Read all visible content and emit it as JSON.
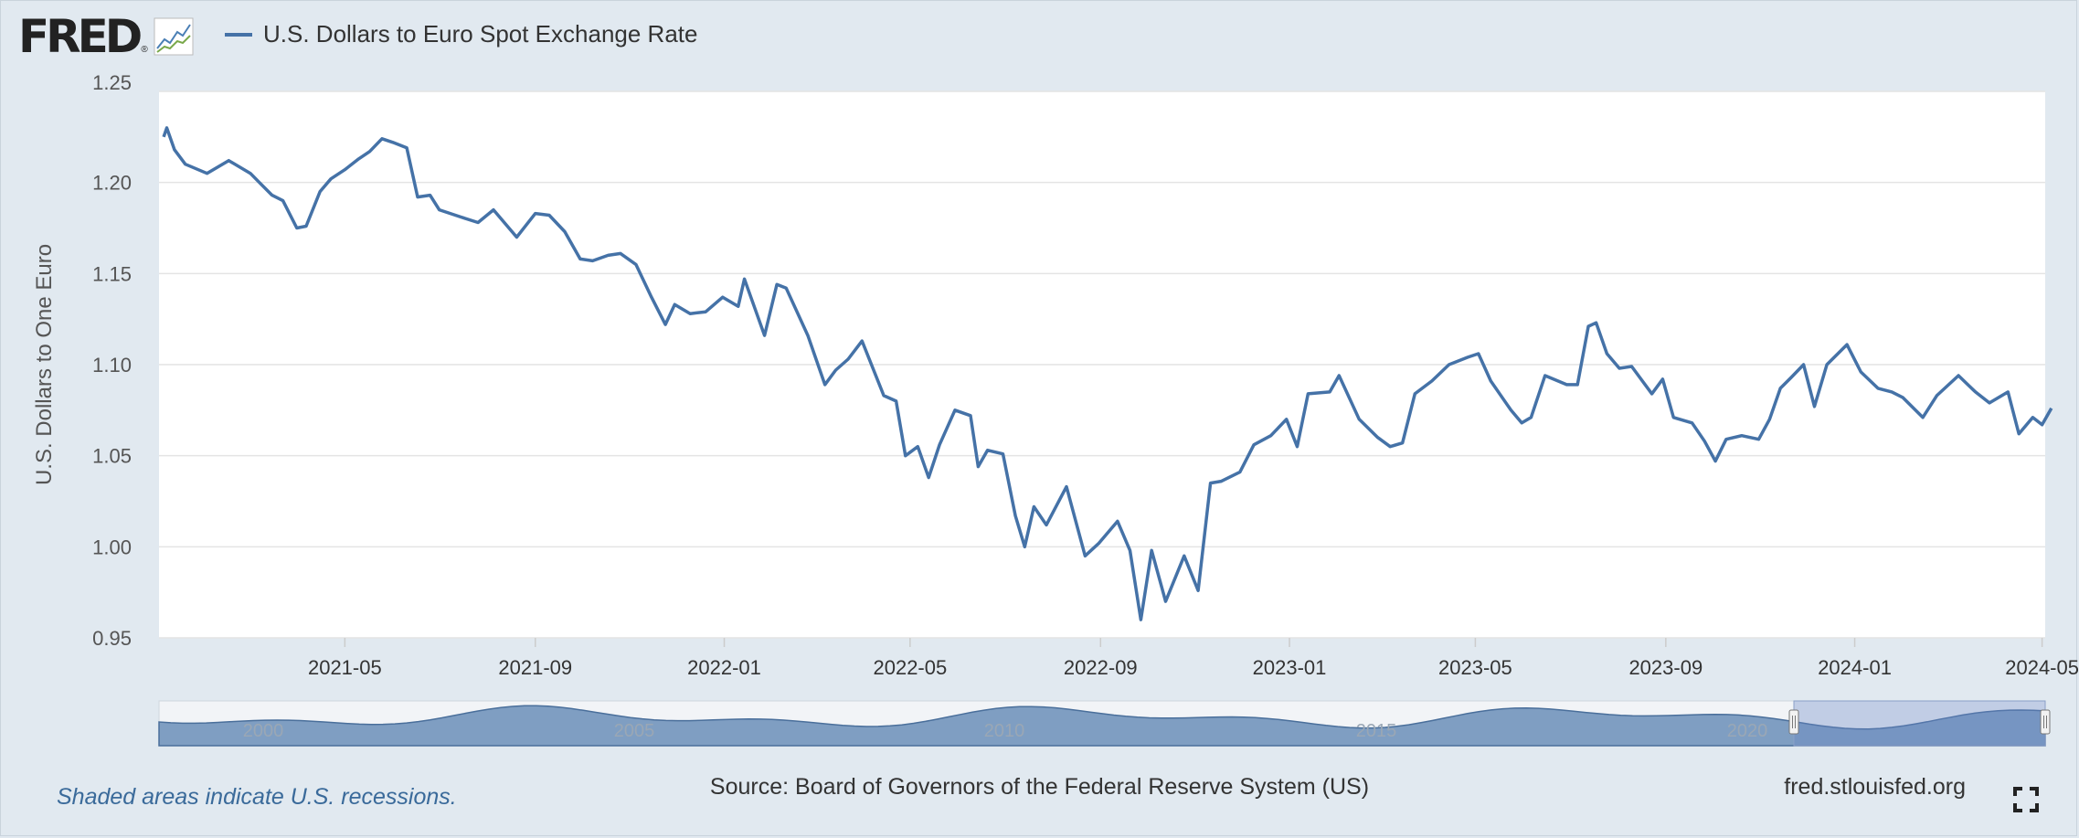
{
  "brand": {
    "name": "FRED",
    "reg": "®"
  },
  "legend": {
    "label": "U.S. Dollars to Euro Spot Exchange Rate",
    "color": "#4572a7"
  },
  "footer": {
    "note": "Shaded areas indicate U.S. recessions.",
    "source": "Source: Board of Governors of the Federal Reserve System (US)",
    "site": "fred.stlouisfed.org"
  },
  "icons": {
    "expand": "fullscreen-expand-icon",
    "logo_graph": "line-graph-icon"
  },
  "chart_data": {
    "type": "line",
    "title": "",
    "ylabel": "U.S. Dollars to One Euro",
    "xlabel": "",
    "ylim": [
      0.95,
      1.25
    ],
    "xlim": [
      "2021-01-01",
      "2024-05-03"
    ],
    "yticks": [
      "0.95",
      "1.00",
      "1.05",
      "1.10",
      "1.15",
      "1.20",
      "1.25"
    ],
    "xticks": [
      "2021-05",
      "2021-09",
      "2022-01",
      "2022-05",
      "2022-09",
      "2023-01",
      "2023-05",
      "2023-09",
      "2024-01",
      "2024-05"
    ],
    "grid": true,
    "series": [
      {
        "name": "U.S. Dollars to Euro Spot Exchange Rate",
        "color": "#4572a7",
        "points": [
          [
            "2021-01-04",
            1.225
          ],
          [
            "2021-01-06",
            1.23
          ],
          [
            "2021-01-11",
            1.218
          ],
          [
            "2021-01-18",
            1.21
          ],
          [
            "2021-02-01",
            1.205
          ],
          [
            "2021-02-15",
            1.212
          ],
          [
            "2021-03-01",
            1.205
          ],
          [
            "2021-03-08",
            1.199
          ],
          [
            "2021-03-15",
            1.193
          ],
          [
            "2021-03-22",
            1.19
          ],
          [
            "2021-03-31",
            1.175
          ],
          [
            "2021-04-06",
            1.176
          ],
          [
            "2021-04-15",
            1.195
          ],
          [
            "2021-04-22",
            1.202
          ],
          [
            "2021-05-01",
            1.207
          ],
          [
            "2021-05-10",
            1.213
          ],
          [
            "2021-05-17",
            1.217
          ],
          [
            "2021-05-25",
            1.224
          ],
          [
            "2021-06-01",
            1.222
          ],
          [
            "2021-06-10",
            1.219
          ],
          [
            "2021-06-17",
            1.192
          ],
          [
            "2021-06-25",
            1.193
          ],
          [
            "2021-07-01",
            1.185
          ],
          [
            "2021-07-15",
            1.181
          ],
          [
            "2021-07-26",
            1.178
          ],
          [
            "2021-08-05",
            1.185
          ],
          [
            "2021-08-20",
            1.17
          ],
          [
            "2021-09-01",
            1.183
          ],
          [
            "2021-09-10",
            1.182
          ],
          [
            "2021-09-20",
            1.173
          ],
          [
            "2021-09-30",
            1.158
          ],
          [
            "2021-10-08",
            1.157
          ],
          [
            "2021-10-18",
            1.16
          ],
          [
            "2021-10-26",
            1.161
          ],
          [
            "2021-11-05",
            1.155
          ],
          [
            "2021-11-15",
            1.137
          ],
          [
            "2021-11-24",
            1.122
          ],
          [
            "2021-11-30",
            1.133
          ],
          [
            "2021-12-10",
            1.128
          ],
          [
            "2021-12-20",
            1.129
          ],
          [
            "2021-12-31",
            1.137
          ],
          [
            "2022-01-10",
            1.132
          ],
          [
            "2022-01-14",
            1.147
          ],
          [
            "2022-01-27",
            1.116
          ],
          [
            "2022-02-04",
            1.144
          ],
          [
            "2022-02-10",
            1.142
          ],
          [
            "2022-02-24",
            1.116
          ],
          [
            "2022-03-07",
            1.089
          ],
          [
            "2022-03-14",
            1.097
          ],
          [
            "2022-03-22",
            1.103
          ],
          [
            "2022-03-31",
            1.113
          ],
          [
            "2022-04-14",
            1.083
          ],
          [
            "2022-04-22",
            1.08
          ],
          [
            "2022-04-28",
            1.05
          ],
          [
            "2022-05-06",
            1.055
          ],
          [
            "2022-05-13",
            1.038
          ],
          [
            "2022-05-20",
            1.056
          ],
          [
            "2022-05-30",
            1.075
          ],
          [
            "2022-06-09",
            1.072
          ],
          [
            "2022-06-14",
            1.044
          ],
          [
            "2022-06-20",
            1.053
          ],
          [
            "2022-06-30",
            1.051
          ],
          [
            "2022-07-08",
            1.017
          ],
          [
            "2022-07-14",
            1.0
          ],
          [
            "2022-07-20",
            1.022
          ],
          [
            "2022-07-28",
            1.012
          ],
          [
            "2022-08-10",
            1.033
          ],
          [
            "2022-08-22",
            0.995
          ],
          [
            "2022-08-31",
            1.002
          ],
          [
            "2022-09-12",
            1.014
          ],
          [
            "2022-09-20",
            0.998
          ],
          [
            "2022-09-27",
            0.96
          ],
          [
            "2022-10-04",
            0.998
          ],
          [
            "2022-10-13",
            0.97
          ],
          [
            "2022-10-25",
            0.995
          ],
          [
            "2022-11-03",
            0.976
          ],
          [
            "2022-11-11",
            1.035
          ],
          [
            "2022-11-18",
            1.036
          ],
          [
            "2022-11-30",
            1.041
          ],
          [
            "2022-12-09",
            1.056
          ],
          [
            "2022-12-20",
            1.061
          ],
          [
            "2022-12-30",
            1.07
          ],
          [
            "2023-01-06",
            1.055
          ],
          [
            "2023-01-13",
            1.084
          ],
          [
            "2023-01-27",
            1.085
          ],
          [
            "2023-02-02",
            1.094
          ],
          [
            "2023-02-15",
            1.07
          ],
          [
            "2023-02-27",
            1.06
          ],
          [
            "2023-03-07",
            1.055
          ],
          [
            "2023-03-15",
            1.057
          ],
          [
            "2023-03-23",
            1.084
          ],
          [
            "2023-04-03",
            1.091
          ],
          [
            "2023-04-14",
            1.1
          ],
          [
            "2023-04-26",
            1.104
          ],
          [
            "2023-05-03",
            1.106
          ],
          [
            "2023-05-11",
            1.091
          ],
          [
            "2023-05-24",
            1.075
          ],
          [
            "2023-05-31",
            1.068
          ],
          [
            "2023-06-06",
            1.071
          ],
          [
            "2023-06-15",
            1.094
          ],
          [
            "2023-06-29",
            1.089
          ],
          [
            "2023-07-06",
            1.089
          ],
          [
            "2023-07-13",
            1.121
          ],
          [
            "2023-07-18",
            1.123
          ],
          [
            "2023-07-25",
            1.106
          ],
          [
            "2023-08-02",
            1.098
          ],
          [
            "2023-08-10",
            1.099
          ],
          [
            "2023-08-23",
            1.084
          ],
          [
            "2023-08-30",
            1.092
          ],
          [
            "2023-09-06",
            1.071
          ],
          [
            "2023-09-18",
            1.068
          ],
          [
            "2023-09-26",
            1.058
          ],
          [
            "2023-10-03",
            1.047
          ],
          [
            "2023-10-10",
            1.059
          ],
          [
            "2023-10-20",
            1.061
          ],
          [
            "2023-10-31",
            1.059
          ],
          [
            "2023-11-07",
            1.07
          ],
          [
            "2023-11-14",
            1.087
          ],
          [
            "2023-11-21",
            1.093
          ],
          [
            "2023-11-29",
            1.1
          ],
          [
            "2023-12-06",
            1.077
          ],
          [
            "2023-12-14",
            1.1
          ],
          [
            "2023-12-27",
            1.111
          ],
          [
            "2024-01-05",
            1.096
          ],
          [
            "2024-01-16",
            1.087
          ],
          [
            "2024-01-25",
            1.085
          ],
          [
            "2024-02-01",
            1.082
          ],
          [
            "2024-02-14",
            1.071
          ],
          [
            "2024-02-23",
            1.083
          ],
          [
            "2024-03-08",
            1.094
          ],
          [
            "2024-03-19",
            1.085
          ],
          [
            "2024-03-28",
            1.079
          ],
          [
            "2024-04-09",
            1.085
          ],
          [
            "2024-04-16",
            1.062
          ],
          [
            "2024-04-25",
            1.071
          ],
          [
            "2024-05-01",
            1.067
          ],
          [
            "2024-05-07",
            1.076
          ]
        ]
      }
    ],
    "navigator": {
      "labels": [
        "2000",
        "2005",
        "2010",
        "2015",
        "2020"
      ]
    }
  }
}
